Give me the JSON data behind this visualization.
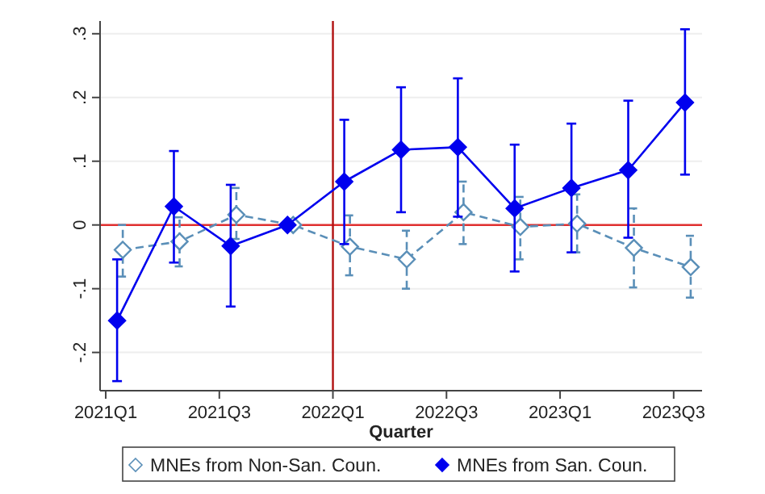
{
  "chart_data": {
    "type": "line",
    "xlabel": "Quarter",
    "categories": [
      "2021Q1",
      null,
      "2021Q3",
      null,
      "2022Q1",
      null,
      "2022Q3",
      null,
      "2023Q1",
      null,
      "2023Q3"
    ],
    "ylim": [
      -0.26,
      0.32
    ],
    "yticks": [
      {
        "value": -0.2,
        "label": "-.2"
      },
      {
        "value": -0.1,
        "label": "-.1"
      },
      0,
      {
        "value": 0.1,
        "label": ".1"
      },
      {
        "value": 0.2,
        "label": ".2"
      },
      {
        "value": 0.3,
        "label": ".3"
      }
    ],
    "grid": "y",
    "legend": "bottom",
    "marker": "diamond",
    "ref_lines": [
      {
        "axis": "y",
        "value": 0,
        "color": "#e03030"
      },
      {
        "axis": "x",
        "value": "2022Q1",
        "color": "#b01010"
      }
    ],
    "series": [
      {
        "name": "MNEs from Non-San. Coun.",
        "color": "#5a8fb8",
        "line_style": "dashed",
        "values": [
          -0.039,
          -0.026,
          0.016,
          0,
          -0.034,
          -0.054,
          0.02,
          -0.003,
          0.002,
          -0.036,
          -0.066
        ],
        "errors": [
          [
            -0.081,
            0
          ],
          [
            -0.065,
            0.012
          ],
          [
            -0.022,
            0.058
          ],
          null,
          [
            -0.079,
            0.015
          ],
          [
            -0.1,
            -0.009
          ],
          [
            -0.03,
            0.068
          ],
          [
            -0.054,
            0.044
          ],
          [
            -0.043,
            0.048
          ],
          [
            -0.098,
            0.026
          ],
          [
            -0.114,
            -0.017
          ]
        ]
      },
      {
        "name": "MNEs from San. Coun.",
        "color": "#0000ee",
        "line_style": "solid",
        "values": [
          -0.15,
          0.029,
          -0.033,
          0,
          0.068,
          0.118,
          0.122,
          0.026,
          0.058,
          0.086,
          0.192
        ],
        "errors": [
          [
            -0.245,
            -0.054
          ],
          [
            -0.059,
            0.116
          ],
          [
            -0.128,
            0.063
          ],
          null,
          [
            -0.03,
            0.165
          ],
          [
            0.02,
            0.216
          ],
          [
            0.013,
            0.23
          ],
          [
            -0.073,
            0.126
          ],
          [
            -0.043,
            0.159
          ],
          [
            -0.02,
            0.195
          ],
          [
            0.079,
            0.307
          ]
        ]
      }
    ]
  }
}
